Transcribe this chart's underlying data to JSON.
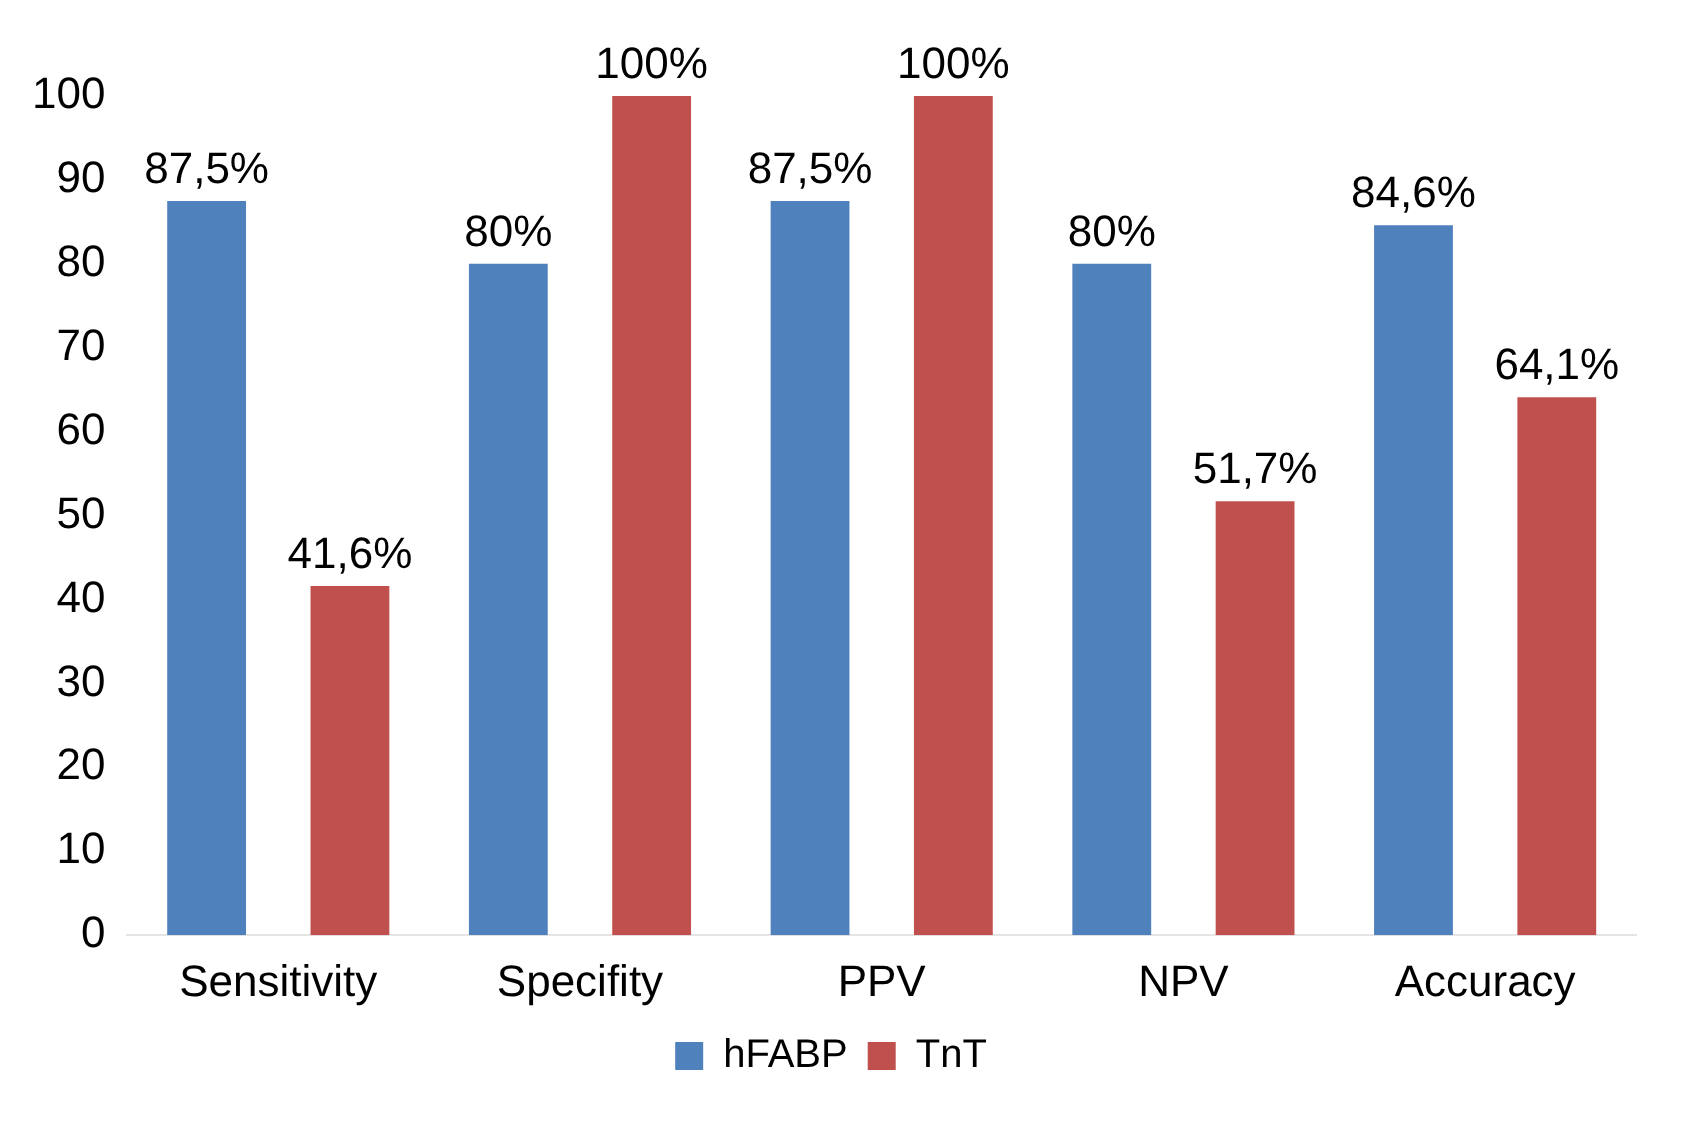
{
  "chart_data": {
    "type": "bar",
    "categories": [
      "Sensitivity",
      "Specifity",
      "PPV",
      "NPV",
      "Accuracy"
    ],
    "series": [
      {
        "name": "hFABP",
        "color": "#4f81bd",
        "values": [
          87.5,
          80,
          87.5,
          80,
          84.6
        ],
        "value_labels": [
          "87,5%",
          "80%",
          "87,5%",
          "80%",
          "84,6%"
        ]
      },
      {
        "name": "TnT",
        "color": "#c0504d",
        "values": [
          41.6,
          100,
          100,
          51.7,
          64.1
        ],
        "value_labels": [
          "41,6%",
          "100%",
          "100%",
          "51,7%",
          "64,1%"
        ]
      }
    ],
    "ylim": [
      0,
      100
    ],
    "yticks": [
      0,
      10,
      20,
      30,
      40,
      50,
      60,
      70,
      80,
      90,
      100
    ],
    "grid": false,
    "legend": "bottom"
  }
}
